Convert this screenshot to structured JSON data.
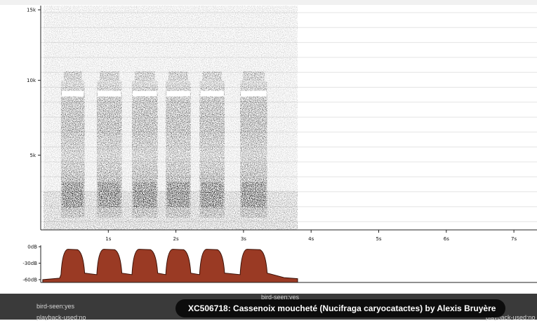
{
  "spectrogram": {
    "y_tick_labels": [
      "15k",
      "10k",
      "5k"
    ],
    "x_tick_labels": [
      "1s",
      "2s",
      "3s",
      "4s",
      "5s",
      "6s",
      "7s"
    ],
    "ylim_hz": [
      0,
      15000
    ],
    "xlim_s": [
      0,
      7.3
    ],
    "audio_duration_s": 3.8
  },
  "amplitude": {
    "tick_labels": [
      "0dB",
      "-30dB",
      "-60dB"
    ],
    "fill_color": "#9a3a24",
    "calls_s": [
      [
        0.3,
        0.65
      ],
      [
        0.83,
        1.2
      ],
      [
        1.35,
        1.73
      ],
      [
        1.85,
        2.22
      ],
      [
        2.35,
        2.72
      ],
      [
        2.95,
        3.35
      ]
    ]
  },
  "footer": {
    "meta_left_1": "bird-seen:yes",
    "meta_left_2": "playback-used:no",
    "meta_center": "bird-seen:yes",
    "meta_right": "playback-used:no",
    "caption": "XC506718: Cassenoix moucheté (Nucifraga caryocatactes) by Alexis Bruyère"
  }
}
